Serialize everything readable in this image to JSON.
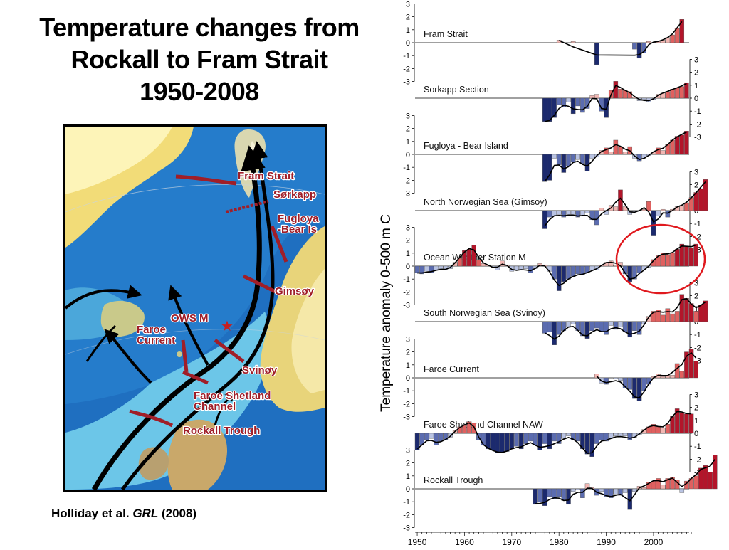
{
  "title": {
    "line1": "Temperature changes from",
    "line2": "Rockall to Fram Strait",
    "line3": "1950-2008"
  },
  "map": {
    "labels": [
      {
        "text": "Fram Strait"
      },
      {
        "text": "Sørkapp"
      },
      {
        "text": "Fugloya"
      },
      {
        "text": "-Bear Is"
      },
      {
        "text": "Gimsøy"
      },
      {
        "text": "OWS M"
      },
      {
        "text": "Faroe"
      },
      {
        "text": "Current"
      },
      {
        "text": "Svinøy"
      },
      {
        "text": "Faroe Shetland"
      },
      {
        "text": "Channel"
      },
      {
        "text": "Rockall Trough"
      }
    ],
    "colors": {
      "ocean_deep": "#1f6fc0",
      "ocean_shallow": "#6cc6e8",
      "land": "#f2dc78",
      "section": "#a01e28",
      "current": "#000000"
    }
  },
  "citation": {
    "authors": "Holliday et al.",
    "journal": "GRL",
    "year": "(2008)"
  },
  "chart_data": {
    "type": "bar",
    "ylabel": "Temperature anomaly 0-500 m C",
    "x_ticks": [
      1950,
      1960,
      1970,
      1980,
      1990,
      2000
    ],
    "xlim": [
      1950,
      2008
    ],
    "ylim": [
      -3,
      3
    ],
    "y_ticks": [
      3,
      2,
      1,
      0,
      -1,
      -2,
      -3
    ],
    "colors": {
      "cold_dark": "#1c2a6e",
      "cold_mid": "#5b6cb0",
      "cold_light": "#b9c3e3",
      "warm_light": "#f2b7b3",
      "warm_mid": "#e0605f",
      "warm_dark": "#b3152a"
    },
    "series": [
      {
        "name": "Fram Strait",
        "start_year": 1980,
        "values": [
          0.2,
          null,
          null,
          0.1,
          null,
          null,
          null,
          null,
          -1.7,
          null,
          null,
          null,
          null,
          null,
          null,
          null,
          -0.5,
          -1.2,
          -0.8,
          0.1,
          0.0,
          0.1,
          0.2,
          0.4,
          0.6,
          1.1,
          1.8
        ]
      },
      {
        "name": "Sorkapp Section",
        "start_year": 1977,
        "values": [
          -1.8,
          -1.8,
          -1.5,
          -0.5,
          -0.7,
          -0.3,
          -1.2,
          -0.6,
          -1.1,
          -0.8,
          0.2,
          0.3,
          -1.0,
          -1.5,
          0.6,
          1.3,
          0.7,
          0.6,
          0.5,
          0.1,
          -0.2,
          -0.1,
          -0.3,
          -0.1,
          0.3,
          0.4,
          0.5,
          0.7,
          0.8,
          0.9,
          1.2
        ]
      },
      {
        "name": "Fugloya - Bear Island",
        "start_year": 1977,
        "values": [
          -2.1,
          -2.0,
          -0.3,
          -0.8,
          -1.4,
          -0.9,
          -0.6,
          -0.4,
          -0.7,
          -1.3,
          -0.3,
          -0.2,
          0.3,
          0.5,
          0.2,
          1.1,
          0.6,
          0.2,
          0.6,
          -0.3,
          -0.5,
          -0.3,
          -0.1,
          0.2,
          0.5,
          0.3,
          0.8,
          1.1,
          1.4,
          1.5,
          1.8
        ]
      },
      {
        "name": "North Norwegian Sea (Gimsoy)",
        "start_year": 1977,
        "values": [
          -1.4,
          -0.5,
          -0.4,
          -0.3,
          -0.5,
          -0.3,
          -0.3,
          -0.5,
          -0.4,
          -0.2,
          -0.7,
          -1.1,
          0.2,
          -0.3,
          0.4,
          0.3,
          1.6,
          0.3,
          -0.3,
          -0.1,
          0.0,
          0.1,
          0.7,
          -1.9,
          -0.4,
          0.1,
          -0.5,
          0.1,
          0.3,
          0.4,
          0.6,
          1.0,
          1.4,
          1.7,
          2.4
        ]
      },
      {
        "name": "Ocean Weather Station M",
        "start_year": 1950,
        "values": [
          -0.5,
          -0.6,
          -0.4,
          -0.5,
          -0.3,
          -0.2,
          -0.3,
          -0.2,
          0.3,
          0.6,
          1.2,
          1.3,
          1.6,
          0.5,
          0.2,
          0.1,
          -0.1,
          -0.3,
          0.4,
          0.1,
          -0.4,
          -0.3,
          -0.3,
          -0.2,
          -0.5,
          -0.2,
          0.2,
          0.1,
          -0.4,
          -1.0,
          -1.9,
          -1.2,
          -1.0,
          -0.8,
          -0.6,
          -0.7,
          -0.5,
          -0.3,
          -0.3,
          0.1,
          0.3,
          0.4,
          0.1,
          0.3,
          -0.6,
          -1.2,
          -1.0,
          -0.5,
          -0.3,
          -0.1,
          0.5,
          0.8,
          1.0,
          0.9,
          1.0,
          1.3,
          1.7,
          1.5,
          1.4,
          1.7
        ]
      },
      {
        "name": "South Norwegian Sea (Svinoy)",
        "start_year": 1977,
        "values": [
          -0.9,
          -0.8,
          -1.8,
          -1.0,
          -0.7,
          -0.4,
          -0.2,
          -0.7,
          -1.1,
          -1.3,
          -0.7,
          -0.5,
          -0.8,
          -1.0,
          -0.3,
          -0.6,
          -0.4,
          -0.8,
          -1.2,
          -0.7,
          -1.0,
          -0.2,
          0.4,
          0.8,
          0.9,
          0.5,
          1.0,
          0.6,
          0.8,
          2.1,
          1.8,
          1.4,
          0.8,
          1.3,
          1.6
        ]
      },
      {
        "name": "Faroe Current",
        "start_year": 1988,
        "values": [
          0.3,
          -0.4,
          -0.5,
          null,
          -0.1,
          -0.2,
          -0.8,
          -0.9,
          -1.6,
          -1.8,
          -1.0,
          -0.5,
          0.1,
          0.3,
          0.1,
          0.2,
          0.2,
          1.1,
          0.5,
          2.0,
          2.2,
          1.3
        ]
      },
      {
        "name": "Faroe Shetland Channel NAW",
        "start_year": 1950,
        "values": [
          -1.3,
          -0.9,
          -0.5,
          -0.4,
          -0.9,
          -0.6,
          -0.5,
          -0.3,
          0.2,
          0.5,
          0.6,
          0.9,
          0.8,
          -0.5,
          -0.9,
          -1.2,
          -1.3,
          -1.5,
          -1.5,
          -1.4,
          -1.2,
          -1.0,
          -1.2,
          -0.8,
          -0.6,
          -0.9,
          -1.3,
          -0.8,
          -1.2,
          -0.6,
          -0.8,
          -0.4,
          -0.2,
          -0.5,
          -0.6,
          -1.2,
          -1.6,
          -1.8,
          -0.8,
          -0.5,
          -0.6,
          -0.4,
          -0.2,
          -0.3,
          -0.2,
          -0.5,
          -0.3,
          -0.1,
          0.3,
          0.5,
          0.7,
          0.5,
          0.4,
          0.7,
          1.3,
          1.9,
          1.6,
          1.5,
          1.5
        ]
      },
      {
        "name": "Rockall Trough",
        "start_year": 1975,
        "values": [
          -1.2,
          -1.0,
          -1.3,
          -0.6,
          -0.8,
          -0.6,
          -0.9,
          -1.2,
          -0.2,
          -0.1,
          -0.7,
          0.4,
          0.1,
          -0.5,
          -0.2,
          -0.6,
          -0.7,
          -0.4,
          -0.5,
          -0.3,
          -1.6,
          -0.2,
          0.2,
          0.1,
          0.5,
          0.6,
          0.8,
          0.3,
          0.8,
          0.9,
          0.7,
          -0.3,
          0.6,
          0.8,
          1.0,
          1.6,
          1.8,
          1.3,
          2.6
        ]
      }
    ]
  }
}
